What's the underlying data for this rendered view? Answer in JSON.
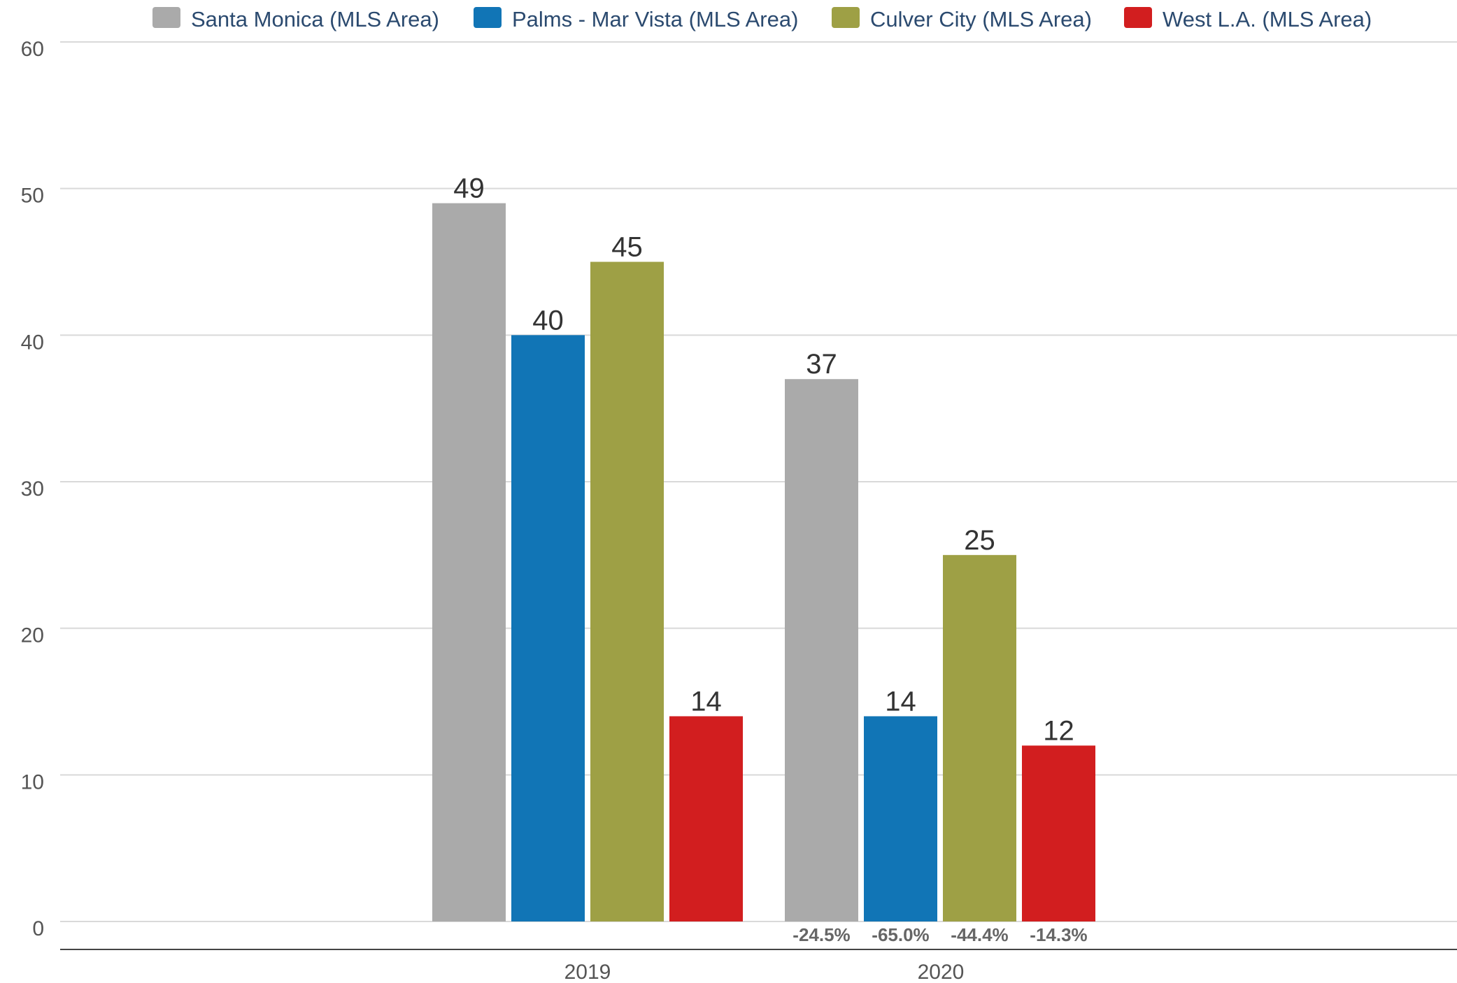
{
  "chart_data": {
    "type": "bar",
    "categories": [
      "2019",
      "2020"
    ],
    "series": [
      {
        "name": "Santa Monica (MLS Area)",
        "color": "#aaaaaa",
        "values": [
          49,
          37
        ]
      },
      {
        "name": "Palms - Mar Vista (MLS Area)",
        "color": "#1175b6",
        "values": [
          40,
          14
        ]
      },
      {
        "name": "Culver City (MLS Area)",
        "color": "#9ea045",
        "values": [
          45,
          25
        ]
      },
      {
        "name": "West L.A. (MLS Area)",
        "color": "#d21e1f",
        "values": [
          14,
          12
        ]
      }
    ],
    "change_labels": [
      "-24.5%",
      "-65.0%",
      "-44.4%",
      "-14.3%"
    ],
    "ylim": [
      0,
      60
    ],
    "yticks": [
      0,
      10,
      20,
      30,
      40,
      50,
      60
    ],
    "grid": true,
    "legend_position": "top",
    "title": "",
    "xlabel": "",
    "ylabel": ""
  }
}
